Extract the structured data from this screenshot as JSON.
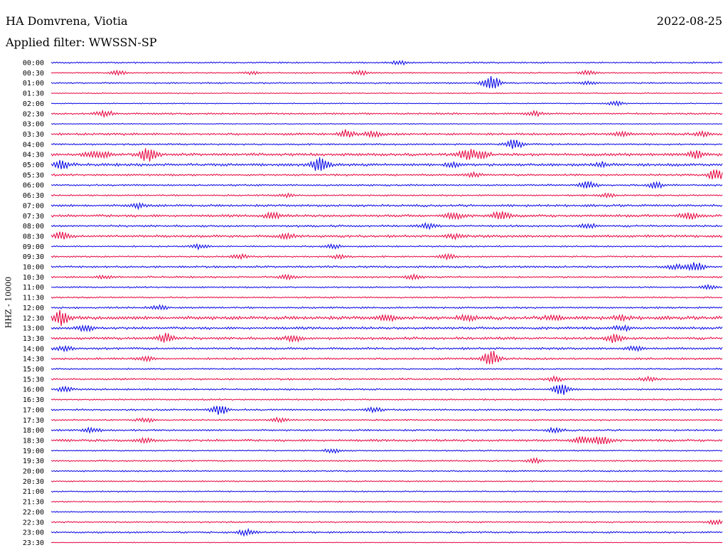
{
  "header": {
    "station": "HA Domvrena, Viotia",
    "date": "2022-08-25",
    "filter": "Applied filter: WWSSN-SP"
  },
  "chart_data": {
    "type": "line",
    "title": "HA Domvrena, Viotia",
    "ylabel": "HHZ - 10000",
    "colors": [
      "#0000e6",
      "#e6003c"
    ],
    "rows": [
      {
        "label": "00:00",
        "amp": 1.2,
        "events": [
          [
            0.52,
            3
          ]
        ]
      },
      {
        "label": "00:30",
        "amp": 1.0,
        "events": [
          [
            0.1,
            3
          ],
          [
            0.3,
            2
          ],
          [
            0.46,
            3
          ],
          [
            0.8,
            3
          ]
        ]
      },
      {
        "label": "01:00",
        "amp": 1.2,
        "events": [
          [
            0.655,
            11
          ],
          [
            0.8,
            2
          ]
        ]
      },
      {
        "label": "01:30",
        "amp": 0.8,
        "events": []
      },
      {
        "label": "02:00",
        "amp": 0.8,
        "events": [
          [
            0.84,
            3
          ]
        ]
      },
      {
        "label": "02:30",
        "amp": 1.4,
        "events": [
          [
            0.08,
            4
          ],
          [
            0.72,
            3
          ]
        ]
      },
      {
        "label": "03:00",
        "amp": 0.8,
        "events": []
      },
      {
        "label": "03:30",
        "amp": 1.8,
        "events": [
          [
            0.44,
            5
          ],
          [
            0.48,
            4
          ],
          [
            0.85,
            3
          ],
          [
            0.97,
            3
          ]
        ]
      },
      {
        "label": "04:00",
        "amp": 1.3,
        "events": [
          [
            0.69,
            7
          ]
        ]
      },
      {
        "label": "04:30",
        "amp": 2.2,
        "events": [
          [
            0.06,
            3
          ],
          [
            0.075,
            4
          ],
          [
            0.145,
            10
          ],
          [
            0.62,
            7
          ],
          [
            0.64,
            5
          ],
          [
            0.96,
            5
          ]
        ]
      },
      {
        "label": "05:00",
        "amp": 2.2,
        "events": [
          [
            0.015,
            6
          ],
          [
            0.4,
            10
          ],
          [
            0.6,
            3
          ],
          [
            0.82,
            3
          ]
        ]
      },
      {
        "label": "05:30",
        "amp": 1.5,
        "events": [
          [
            0.63,
            3
          ],
          [
            0.99,
            7
          ]
        ]
      },
      {
        "label": "06:00",
        "amp": 1.4,
        "events": [
          [
            0.8,
            5
          ],
          [
            0.9,
            4
          ]
        ]
      },
      {
        "label": "06:30",
        "amp": 1.2,
        "events": [
          [
            0.35,
            2
          ],
          [
            0.83,
            3
          ]
        ]
      },
      {
        "label": "07:00",
        "amp": 1.8,
        "events": [
          [
            0.13,
            3
          ]
        ]
      },
      {
        "label": "07:30",
        "amp": 2.0,
        "events": [
          [
            0.33,
            4
          ],
          [
            0.6,
            5
          ],
          [
            0.67,
            6
          ],
          [
            0.95,
            5
          ]
        ]
      },
      {
        "label": "08:00",
        "amp": 1.6,
        "events": [
          [
            0.56,
            3
          ],
          [
            0.8,
            3
          ]
        ]
      },
      {
        "label": "08:30",
        "amp": 2.0,
        "events": [
          [
            0.015,
            5
          ],
          [
            0.35,
            3
          ],
          [
            0.6,
            3
          ]
        ]
      },
      {
        "label": "09:00",
        "amp": 1.2,
        "events": [
          [
            0.22,
            3
          ],
          [
            0.42,
            3
          ]
        ]
      },
      {
        "label": "09:30",
        "amp": 1.2,
        "events": [
          [
            0.28,
            3
          ],
          [
            0.43,
            3
          ],
          [
            0.59,
            3
          ]
        ]
      },
      {
        "label": "10:00",
        "amp": 1.6,
        "events": [
          [
            0.93,
            3
          ],
          [
            0.96,
            6
          ]
        ]
      },
      {
        "label": "10:30",
        "amp": 1.4,
        "events": [
          [
            0.08,
            2
          ],
          [
            0.35,
            3
          ],
          [
            0.54,
            3
          ]
        ]
      },
      {
        "label": "11:00",
        "amp": 1.2,
        "events": [
          [
            0.98,
            3
          ]
        ]
      },
      {
        "label": "11:30",
        "amp": 1.2,
        "events": []
      },
      {
        "label": "12:00",
        "amp": 1.4,
        "events": [
          [
            0.16,
            3
          ]
        ]
      },
      {
        "label": "12:30",
        "amp": 2.6,
        "events": [
          [
            0.015,
            9
          ],
          [
            0.5,
            4
          ],
          [
            0.62,
            4
          ],
          [
            0.75,
            4
          ],
          [
            0.85,
            3
          ]
        ]
      },
      {
        "label": "13:00",
        "amp": 2.0,
        "events": [
          [
            0.05,
            4
          ],
          [
            0.85,
            3
          ]
        ]
      },
      {
        "label": "13:30",
        "amp": 2.0,
        "events": [
          [
            0.17,
            7
          ],
          [
            0.36,
            4
          ],
          [
            0.84,
            6
          ]
        ]
      },
      {
        "label": "14:00",
        "amp": 1.8,
        "events": [
          [
            0.02,
            3
          ],
          [
            0.87,
            3
          ]
        ]
      },
      {
        "label": "14:30",
        "amp": 1.6,
        "events": [
          [
            0.655,
            11
          ],
          [
            0.14,
            3
          ]
        ]
      },
      {
        "label": "15:00",
        "amp": 1.2,
        "events": []
      },
      {
        "label": "15:30",
        "amp": 1.4,
        "events": [
          [
            0.75,
            3
          ],
          [
            0.89,
            3
          ]
        ]
      },
      {
        "label": "16:00",
        "amp": 1.4,
        "events": [
          [
            0.76,
            8
          ],
          [
            0.02,
            3
          ]
        ]
      },
      {
        "label": "16:30",
        "amp": 1.2,
        "events": []
      },
      {
        "label": "17:00",
        "amp": 1.4,
        "events": [
          [
            0.25,
            7
          ],
          [
            0.48,
            3
          ]
        ]
      },
      {
        "label": "17:30",
        "amp": 1.2,
        "events": [
          [
            0.14,
            3
          ],
          [
            0.34,
            3
          ]
        ]
      },
      {
        "label": "18:00",
        "amp": 1.4,
        "events": [
          [
            0.06,
            4
          ],
          [
            0.75,
            3
          ]
        ]
      },
      {
        "label": "18:30",
        "amp": 1.8,
        "events": [
          [
            0.14,
            3
          ],
          [
            0.79,
            6
          ],
          [
            0.82,
            7
          ]
        ]
      },
      {
        "label": "19:00",
        "amp": 1.0,
        "events": [
          [
            0.42,
            3
          ]
        ]
      },
      {
        "label": "19:30",
        "amp": 1.2,
        "events": [
          [
            0.72,
            3
          ]
        ]
      },
      {
        "label": "20:00",
        "amp": 1.2,
        "events": []
      },
      {
        "label": "20:30",
        "amp": 1.0,
        "events": []
      },
      {
        "label": "21:00",
        "amp": 1.0,
        "events": []
      },
      {
        "label": "21:30",
        "amp": 1.0,
        "events": []
      },
      {
        "label": "22:00",
        "amp": 1.0,
        "events": []
      },
      {
        "label": "22:30",
        "amp": 1.2,
        "events": [
          [
            0.99,
            3
          ]
        ]
      },
      {
        "label": "23:00",
        "amp": 1.4,
        "events": [
          [
            0.29,
            4
          ]
        ]
      },
      {
        "label": "23:30",
        "amp": 0.6,
        "events": []
      }
    ]
  }
}
